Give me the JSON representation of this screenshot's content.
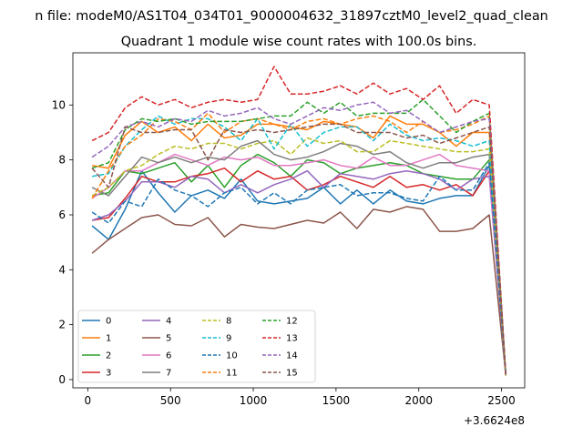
{
  "figure": {
    "suptitle": "n file: modeM0/AS1T04_034T01_9000004632_31897cztM0_level2_quad_clean",
    "background": "#ffffff"
  },
  "chart_data": {
    "type": "line",
    "title": "Quadrant 1 module wise count rates with 100.0s bins.",
    "xlabel": "",
    "ylabel": "",
    "x_offset_label": "+3.6624e8",
    "xlim": [
      -90,
      2640
    ],
    "ylim": [
      -0.3,
      11.9
    ],
    "xticks": [
      0,
      500,
      1000,
      1500,
      2000,
      2500
    ],
    "yticks": [
      0,
      2,
      4,
      6,
      8,
      10
    ],
    "legend_position": "lower-left",
    "legend_columns": 4,
    "grid": false,
    "x": [
      26,
      126,
      226,
      326,
      426,
      526,
      626,
      726,
      826,
      926,
      1026,
      1126,
      1226,
      1326,
      1426,
      1526,
      1626,
      1726,
      1826,
      1926,
      2026,
      2126,
      2226,
      2326,
      2426,
      2526
    ],
    "series": [
      {
        "name": "0",
        "color": "#1f77b4",
        "dash": "solid",
        "values": [
          5.6,
          5.1,
          6.2,
          7.6,
          6.8,
          6.1,
          6.7,
          6.9,
          6.6,
          7.3,
          6.5,
          6.4,
          6.5,
          6.6,
          7.0,
          6.4,
          6.9,
          6.4,
          6.9,
          6.5,
          6.4,
          6.6,
          6.7,
          6.7,
          7.8,
          0.15
        ]
      },
      {
        "name": "1",
        "color": "#ff7f0e",
        "dash": "solid",
        "values": [
          7.8,
          7.7,
          8.9,
          9.4,
          9.0,
          9.2,
          8.7,
          9.3,
          8.8,
          8.9,
          9.3,
          9.3,
          9.2,
          9.1,
          9.4,
          9.3,
          9.2,
          8.8,
          9.6,
          9.3,
          9.3,
          9.0,
          8.5,
          9.0,
          9.0,
          0.15
        ]
      },
      {
        "name": "2",
        "color": "#2ca02c",
        "dash": "solid",
        "values": [
          6.7,
          6.8,
          7.6,
          7.5,
          7.7,
          7.9,
          7.2,
          7.8,
          7.0,
          7.8,
          8.2,
          7.9,
          7.4,
          8.0,
          7.9,
          7.5,
          7.7,
          7.8,
          7.9,
          7.8,
          7.5,
          7.4,
          7.3,
          7.3,
          8.0,
          0.15
        ]
      },
      {
        "name": "3",
        "color": "#d62728",
        "dash": "solid",
        "values": [
          5.8,
          5.9,
          6.6,
          7.4,
          7.2,
          7.2,
          7.4,
          7.5,
          7.7,
          7.2,
          7.6,
          7.3,
          7.4,
          6.9,
          7.1,
          7.4,
          7.2,
          7.0,
          7.4,
          7.0,
          7.1,
          6.9,
          7.1,
          6.7,
          7.6,
          0.15
        ]
      },
      {
        "name": "4",
        "color": "#9467bd",
        "dash": "solid",
        "values": [
          5.8,
          6.0,
          6.5,
          7.2,
          7.2,
          7.0,
          7.4,
          7.3,
          6.8,
          7.1,
          6.8,
          7.1,
          7.3,
          7.6,
          7.0,
          7.5,
          7.4,
          7.3,
          7.5,
          7.6,
          7.5,
          7.3,
          6.9,
          7.3,
          7.4,
          0.15
        ]
      },
      {
        "name": "5",
        "color": "#8c564b",
        "dash": "solid",
        "values": [
          4.6,
          5.1,
          5.5,
          5.9,
          6.0,
          5.65,
          5.6,
          5.9,
          5.2,
          5.65,
          5.55,
          5.5,
          5.65,
          5.8,
          5.7,
          6.1,
          5.5,
          6.2,
          6.1,
          6.3,
          6.2,
          5.4,
          5.4,
          5.5,
          6.0,
          0.15
        ]
      },
      {
        "name": "6",
        "color": "#e377c2",
        "dash": "solid",
        "values": [
          6.6,
          7.0,
          7.6,
          7.6,
          7.9,
          8.2,
          8.0,
          7.8,
          8.1,
          8.0,
          8.1,
          7.8,
          7.8,
          7.9,
          8.0,
          7.8,
          7.7,
          8.1,
          7.8,
          7.8,
          8.0,
          8.2,
          7.8,
          7.7,
          7.6,
          0.15
        ]
      },
      {
        "name": "7",
        "color": "#7f7f7f",
        "dash": "solid",
        "values": [
          7.0,
          6.7,
          7.4,
          8.1,
          7.9,
          8.1,
          7.9,
          8.1,
          8.0,
          8.5,
          8.7,
          8.2,
          8.0,
          8.1,
          8.3,
          8.6,
          8.5,
          8.2,
          8.3,
          7.9,
          7.7,
          7.9,
          7.9,
          8.1,
          8.2,
          0.15
        ]
      },
      {
        "name": "8",
        "color": "#bcbd22",
        "dash": "dashed",
        "values": [
          6.7,
          7.0,
          7.6,
          7.8,
          8.2,
          8.5,
          8.4,
          8.6,
          8.6,
          8.4,
          8.6,
          8.7,
          8.2,
          8.8,
          8.6,
          8.7,
          8.3,
          8.3,
          8.7,
          8.6,
          8.5,
          8.4,
          8.3,
          8.3,
          8.4,
          0.15
        ]
      },
      {
        "name": "9",
        "color": "#17becf",
        "dash": "dashed",
        "values": [
          7.4,
          7.5,
          8.5,
          9.1,
          9.6,
          9.3,
          9.5,
          9.5,
          9.2,
          8.7,
          9.5,
          8.4,
          9.3,
          8.5,
          9.0,
          9.2,
          9.2,
          8.7,
          9.3,
          8.9,
          8.7,
          8.8,
          8.7,
          8.5,
          8.7,
          0.15
        ]
      },
      {
        "name": "10",
        "color": "#1f77b4",
        "dash": "dashed",
        "values": [
          6.1,
          5.7,
          6.5,
          6.3,
          7.3,
          6.9,
          6.7,
          6.3,
          6.8,
          7.0,
          6.4,
          6.8,
          6.4,
          6.9,
          7.0,
          7.1,
          6.7,
          6.8,
          6.8,
          6.6,
          6.5,
          7.4,
          6.9,
          6.9,
          7.9,
          0.15
        ]
      },
      {
        "name": "11",
        "color": "#ff7f0e",
        "dash": "dashed",
        "values": [
          6.6,
          7.6,
          8.5,
          8.9,
          9.5,
          9.4,
          9.1,
          9.7,
          9.0,
          9.4,
          9.5,
          9.3,
          9.1,
          9.4,
          9.5,
          9.3,
          9.5,
          9.6,
          9.4,
          9.0,
          9.4,
          9.0,
          9.1,
          9.3,
          9.6,
          0.15
        ]
      },
      {
        "name": "12",
        "color": "#2ca02c",
        "dash": "dashed",
        "values": [
          7.7,
          7.9,
          9.1,
          9.5,
          9.4,
          9.5,
          9.3,
          9.4,
          9.4,
          9.4,
          9.5,
          9.6,
          9.6,
          10.1,
          9.7,
          10.1,
          9.6,
          9.7,
          9.7,
          9.7,
          10.2,
          9.6,
          9.0,
          9.4,
          9.7,
          0.15
        ]
      },
      {
        "name": "13",
        "color": "#d62728",
        "dash": "dashed",
        "values": [
          8.7,
          9.0,
          9.9,
          10.3,
          10.0,
          10.2,
          9.9,
          10.1,
          10.2,
          10.1,
          10.2,
          11.4,
          10.4,
          10.4,
          10.5,
          10.7,
          10.4,
          10.8,
          10.4,
          10.6,
          10.2,
          10.7,
          9.7,
          10.2,
          10.0,
          0.15
        ]
      },
      {
        "name": "14",
        "color": "#9467bd",
        "dash": "dashed",
        "values": [
          8.1,
          8.5,
          9.2,
          9.4,
          9.2,
          9.5,
          9.4,
          9.8,
          9.6,
          9.7,
          9.9,
          9.5,
          9.3,
          9.6,
          9.9,
          9.8,
          10.0,
          10.1,
          9.7,
          9.8,
          9.4,
          9.0,
          9.2,
          9.4,
          9.5,
          0.15
        ]
      },
      {
        "name": "15",
        "color": "#8c564b",
        "dash": "dashed",
        "values": [
          7.7,
          7.0,
          9.2,
          9.0,
          9.0,
          9.1,
          9.1,
          8.0,
          9.1,
          9.0,
          9.1,
          9.0,
          9.1,
          9.2,
          9.3,
          9.3,
          9.0,
          9.0,
          9.0,
          8.8,
          8.9,
          8.6,
          8.8,
          9.0,
          9.2,
          0.15
        ]
      }
    ]
  }
}
